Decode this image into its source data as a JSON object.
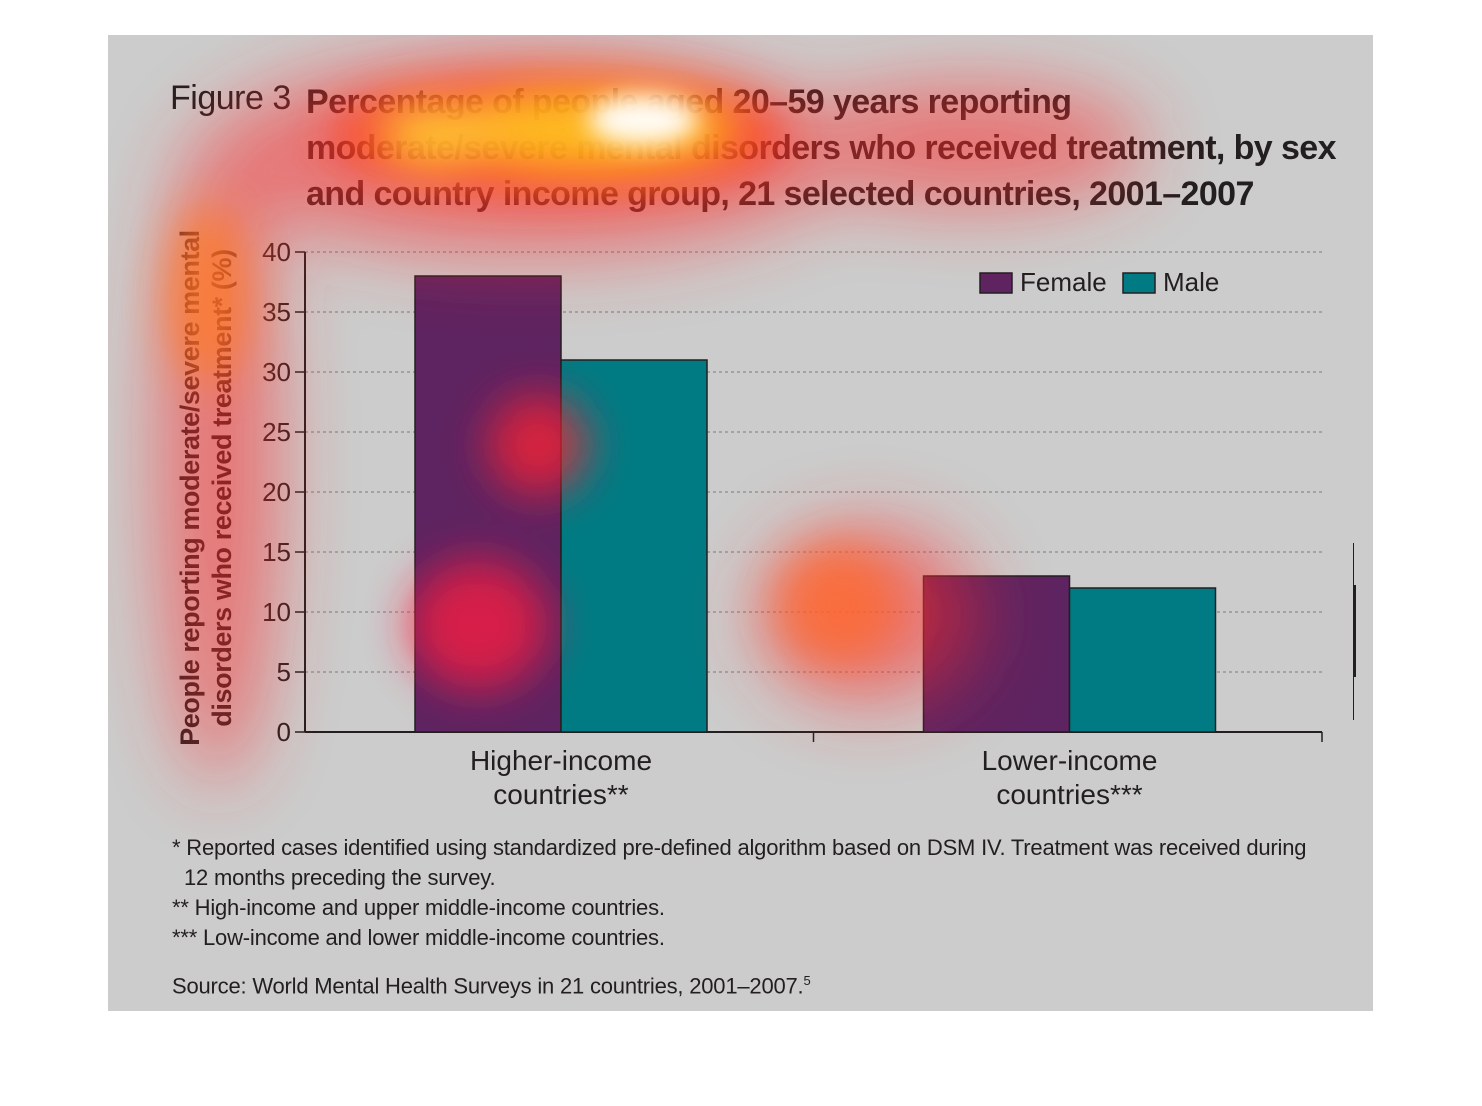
{
  "figure": {
    "label": "Figure 3",
    "title": "Percentage of people aged 20–59 years reporting moderate/severe mental disorders who received treatment, by sex and country income group, 21 selected countries, 2001–2007"
  },
  "chart_data": {
    "type": "bar",
    "categories": [
      "Higher-income countries**",
      "Lower-income countries***"
    ],
    "category_lines": [
      [
        "Higher-income",
        "countries**"
      ],
      [
        "Lower-income",
        "countries***"
      ]
    ],
    "series": [
      {
        "name": "Female",
        "values": [
          38,
          13
        ],
        "color": "#5e2461"
      },
      {
        "name": "Male",
        "values": [
          31,
          12
        ],
        "color": "#007b84"
      }
    ],
    "ylabel": "People reporting moderate/severe mental disorders who received treatment* (%)",
    "ylim": [
      0,
      40
    ],
    "yticks": [
      0,
      5,
      10,
      15,
      20,
      25,
      30,
      35,
      40
    ],
    "grid": true,
    "legend_position": "top-right"
  },
  "notes": {
    "line1": "* Reported cases identified using standardized pre-defined algorithm based on DSM IV. Treatment was received during",
    "line1b": "12 months preceding the survey.",
    "line2": "** High-income and upper middle-income countries.",
    "line3": "*** Low-income and lower middle-income countries.",
    "source": "Source: World Mental Health Surveys in 21 countries, 2001–2007.",
    "source_ref": "5"
  },
  "colors": {
    "background": "#cccccc",
    "female": "#5e2461",
    "male": "#007b84",
    "text": "#231f20"
  }
}
